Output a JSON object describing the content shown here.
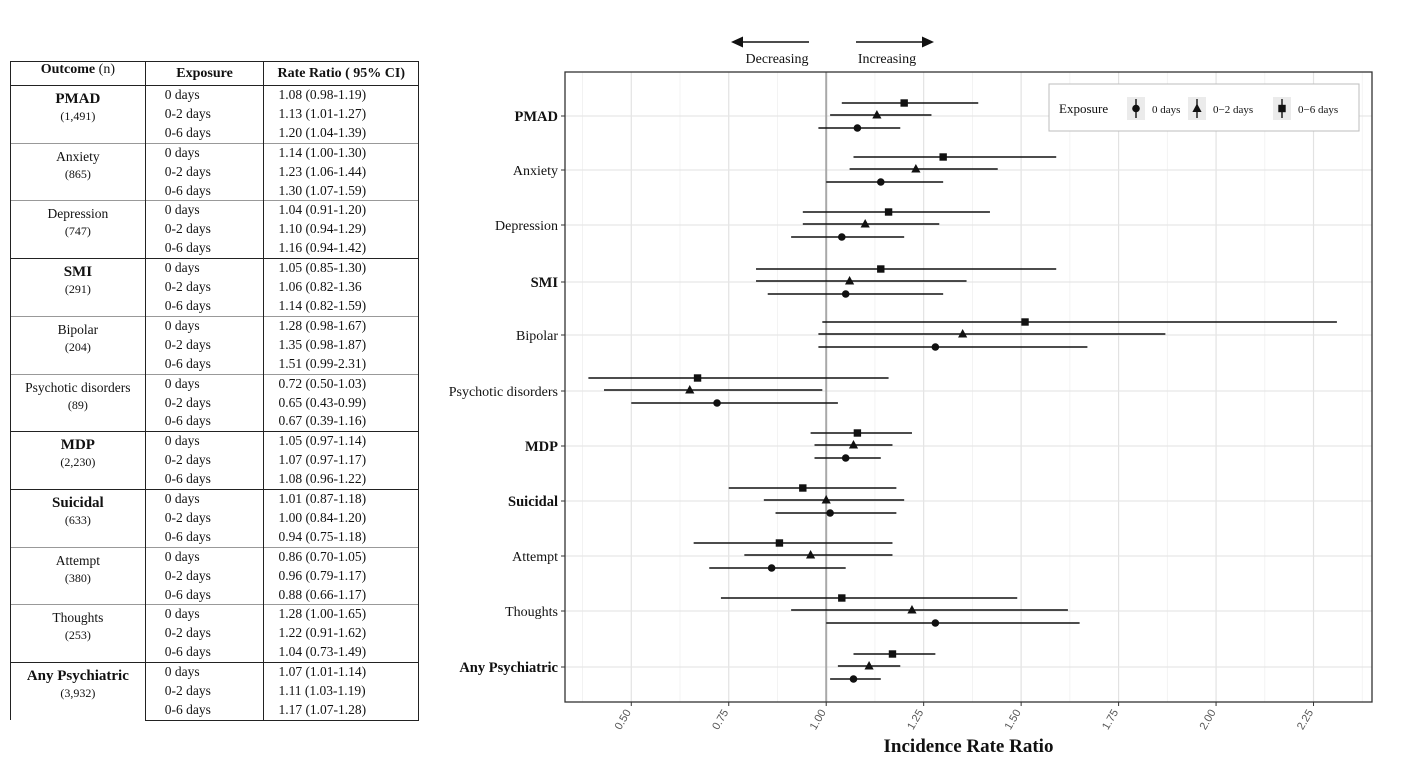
{
  "table": {
    "headers": {
      "outcome": "Outcome",
      "outcome_suffix": "(n)",
      "exposure": "Exposure",
      "rate_ratio": "Rate Ratio ( 95% CI)"
    },
    "groups": [
      {
        "name": "PMAD",
        "n": "(1,491)",
        "bold": true,
        "major": true,
        "rows": [
          {
            "exposure": "0 days",
            "rr": "1.08 (0.98-1.19)"
          },
          {
            "exposure": "0-2 days",
            "rr": "1.13 (1.01-1.27)"
          },
          {
            "exposure": "0-6 days",
            "rr": "1.20 (1.04-1.39)"
          }
        ]
      },
      {
        "name": "Anxiety",
        "n": "(865)",
        "bold": false,
        "major": false,
        "rows": [
          {
            "exposure": "0 days",
            "rr": "1.14 (1.00-1.30)"
          },
          {
            "exposure": "0-2 days",
            "rr": "1.23 (1.06-1.44)"
          },
          {
            "exposure": "0-6 days",
            "rr": "1.30 (1.07-1.59)"
          }
        ]
      },
      {
        "name": "Depression",
        "n": "(747)",
        "bold": false,
        "major": false,
        "rows": [
          {
            "exposure": "0 days",
            "rr": "1.04 (0.91-1.20)"
          },
          {
            "exposure": "0-2 days",
            "rr": "1.10 (0.94-1.29)"
          },
          {
            "exposure": "0-6 days",
            "rr": "1.16 (0.94-1.42)"
          }
        ]
      },
      {
        "name": "SMI",
        "n": "(291)",
        "bold": true,
        "major": true,
        "rows": [
          {
            "exposure": "0 days",
            "rr": "1.05 (0.85-1.30)"
          },
          {
            "exposure": "0-2 days",
            "rr": "1.06 (0.82-1.36"
          },
          {
            "exposure": "0-6 days",
            "rr": "1.14 (0.82-1.59)"
          }
        ]
      },
      {
        "name": "Bipolar",
        "n": "(204)",
        "bold": false,
        "major": false,
        "rows": [
          {
            "exposure": "0 days",
            "rr": "1.28 (0.98-1.67)"
          },
          {
            "exposure": "0-2 days",
            "rr": "1.35 (0.98-1.87)"
          },
          {
            "exposure": "0-6 days",
            "rr": "1.51 (0.99-2.31)"
          }
        ]
      },
      {
        "name": "Psychotic disorders",
        "n": "(89)",
        "bold": false,
        "major": false,
        "rows": [
          {
            "exposure": "0 days",
            "rr": "0.72 (0.50-1.03)"
          },
          {
            "exposure": "0-2 days",
            "rr": "0.65 (0.43-0.99)"
          },
          {
            "exposure": "0-6 days",
            "rr": "0.67 (0.39-1.16)"
          }
        ]
      },
      {
        "name": "MDP",
        "n": "(2,230)",
        "bold": true,
        "major": true,
        "rows": [
          {
            "exposure": "0 days",
            "rr": "1.05 (0.97-1.14)"
          },
          {
            "exposure": "0-2 days",
            "rr": "1.07 (0.97-1.17)"
          },
          {
            "exposure": "0-6 days",
            "rr": "1.08 (0.96-1.22)"
          }
        ]
      },
      {
        "name": "Suicidal",
        "n": "(633)",
        "bold": true,
        "major": true,
        "rows": [
          {
            "exposure": "0 days",
            "rr": "1.01 (0.87-1.18)"
          },
          {
            "exposure": "0-2 days",
            "rr": "1.00 (0.84-1.20)"
          },
          {
            "exposure": "0-6 days",
            "rr": "0.94 (0.75-1.18)"
          }
        ]
      },
      {
        "name": "Attempt",
        "n": "(380)",
        "bold": false,
        "major": false,
        "rows": [
          {
            "exposure": "0 days",
            "rr": "0.86 (0.70-1.05)"
          },
          {
            "exposure": "0-2 days",
            "rr": "0.96 (0.79-1.17)"
          },
          {
            "exposure": "0-6 days",
            "rr": "0.88 (0.66-1.17)"
          }
        ]
      },
      {
        "name": "Thoughts",
        "n": "(253)",
        "bold": false,
        "major": false,
        "rows": [
          {
            "exposure": "0 days",
            "rr": "1.28 (1.00-1.65)"
          },
          {
            "exposure": "0-2 days",
            "rr": "1.22 (0.91-1.62)"
          },
          {
            "exposure": "0-6 days",
            "rr": "1.04 (0.73-1.49)"
          }
        ]
      },
      {
        "name": "Any Psychiatric",
        "n": "(3,932)",
        "bold": true,
        "major": true,
        "rows": [
          {
            "exposure": "0 days",
            "rr": "1.07 (1.01-1.14)"
          },
          {
            "exposure": "0-2 days",
            "rr": "1.11 (1.03-1.19)"
          },
          {
            "exposure": "0-6 days",
            "rr": "1.17 (1.07-1.28)"
          }
        ]
      }
    ]
  },
  "chart_data": {
    "type": "forest",
    "xlabel": "Incidence Rate Ratio",
    "xlim": [
      0.33,
      2.4
    ],
    "reference_line": 1.0,
    "xticks": [
      "0.50",
      "0.75",
      "1.00",
      "1.25",
      "1.50",
      "1.75",
      "2.00",
      "2.25"
    ],
    "grid": true,
    "direction_labels": {
      "left": "Decreasing",
      "right": "Increasing"
    },
    "legend": {
      "title": "Exposure",
      "position": "top-right",
      "entries": [
        {
          "label": "0 days",
          "shape": "circle"
        },
        {
          "label": "0−2 days",
          "shape": "triangle"
        },
        {
          "label": "0−6 days",
          "shape": "square"
        }
      ]
    },
    "categories": [
      {
        "label": "PMAD",
        "bold": true
      },
      {
        "label": "Anxiety",
        "bold": false
      },
      {
        "label": "Depression",
        "bold": false
      },
      {
        "label": "SMI",
        "bold": true
      },
      {
        "label": "Bipolar",
        "bold": false
      },
      {
        "label": "Psychotic disorders",
        "bold": false
      },
      {
        "label": "MDP",
        "bold": true
      },
      {
        "label": "Suicidal",
        "bold": true
      },
      {
        "label": "Attempt",
        "bold": false
      },
      {
        "label": "Thoughts",
        "bold": false
      },
      {
        "label": "Any Psychiatric",
        "bold": true
      }
    ],
    "series": [
      {
        "name": "0 days",
        "shape": "circle",
        "est": [
          1.08,
          1.14,
          1.04,
          1.05,
          1.28,
          0.72,
          1.05,
          1.01,
          0.86,
          1.28,
          1.07
        ],
        "low": [
          0.98,
          1.0,
          0.91,
          0.85,
          0.98,
          0.5,
          0.97,
          0.87,
          0.7,
          1.0,
          1.01
        ],
        "high": [
          1.19,
          1.3,
          1.2,
          1.3,
          1.67,
          1.03,
          1.14,
          1.18,
          1.05,
          1.65,
          1.14
        ]
      },
      {
        "name": "0-2 days",
        "shape": "triangle",
        "est": [
          1.13,
          1.23,
          1.1,
          1.06,
          1.35,
          0.65,
          1.07,
          1.0,
          0.96,
          1.22,
          1.11
        ],
        "low": [
          1.01,
          1.06,
          0.94,
          0.82,
          0.98,
          0.43,
          0.97,
          0.84,
          0.79,
          0.91,
          1.03
        ],
        "high": [
          1.27,
          1.44,
          1.29,
          1.36,
          1.87,
          0.99,
          1.17,
          1.2,
          1.17,
          1.62,
          1.19
        ]
      },
      {
        "name": "0-6 days",
        "shape": "square",
        "est": [
          1.2,
          1.3,
          1.16,
          1.14,
          1.51,
          0.67,
          1.08,
          0.94,
          0.88,
          1.04,
          1.17
        ],
        "low": [
          1.04,
          1.07,
          0.94,
          0.82,
          0.99,
          0.39,
          0.96,
          0.75,
          0.66,
          0.73,
          1.07
        ],
        "high": [
          1.39,
          1.59,
          1.42,
          1.59,
          2.31,
          1.16,
          1.22,
          1.18,
          1.17,
          1.49,
          1.28
        ]
      }
    ]
  }
}
